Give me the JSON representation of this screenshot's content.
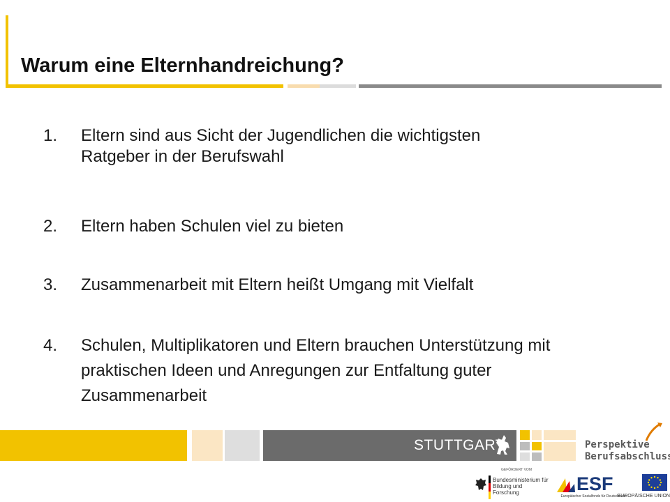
{
  "slide": {
    "title": "Warum eine Elternhandreichung?",
    "items": [
      {
        "number": "1.",
        "text": "Eltern sind aus Sicht der Jugendlichen die wichtigsten Ratgeber in der Berufswahl"
      },
      {
        "number": "2.",
        "text": "Eltern haben Schulen viel zu bieten"
      },
      {
        "number": "3.",
        "text": "Zusammenarbeit mit Eltern heißt Umgang mit Vielfalt"
      },
      {
        "number": "4.",
        "text": "Schulen, Multiplikatoren und Eltern brauchen Unterstützung mit praktischen Ideen und Anregungen zur Entfaltung guter Zusammenarbeit"
      }
    ]
  },
  "footer": {
    "city_logo_text": "STUTTGART",
    "perspektive_line1": "Perspektive",
    "perspektive_line2": "Berufsabschluss",
    "funded_by": "GEFÖRDERT VOM",
    "bmbf_text": "Bundesministerium für Bildung und Forschung",
    "esf_text": "ESF",
    "esf_sub": "Europäischer Sozialfonds für Deutschland",
    "eu_text": "EUROPÄISCHE UNION"
  },
  "colors": {
    "accent_yellow": "#f2c200",
    "light_peach": "#f8dcae",
    "light_gray": "#dcdcdc",
    "dark_gray": "#6b6b6b",
    "esf_blue": "#1b3a7a",
    "eu_blue": "#1d3e98"
  }
}
